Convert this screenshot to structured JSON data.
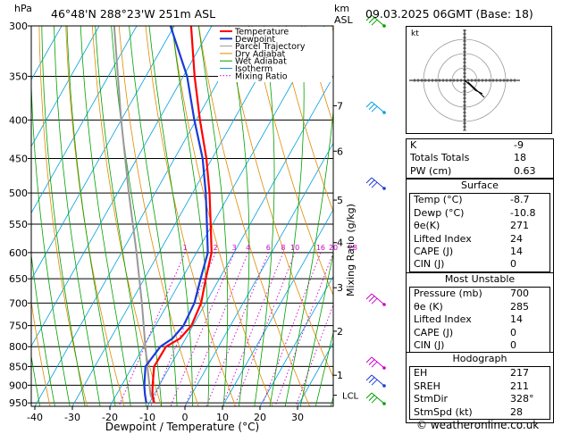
{
  "header": {
    "location": "46°48'N  288°23'W  251m  ASL",
    "datetime": "09.03.2025  06GMT  (Base: 18)",
    "hpa_label": "hPa",
    "km_label": "km",
    "asl_label": "ASL"
  },
  "chart_data": {
    "type": "skew-t",
    "xlabel": "Dewpoint / Temperature (°C)",
    "ylabel_right": "Mixing Ratio (g/kg)",
    "x_ticks": [
      -40,
      -30,
      -20,
      -10,
      0,
      10,
      20,
      30
    ],
    "pressure_levels": [
      300,
      350,
      400,
      450,
      500,
      550,
      600,
      650,
      700,
      750,
      800,
      850,
      900,
      950
    ],
    "km_ticks": [
      {
        "label": "1",
        "p": 873
      },
      {
        "label": "2",
        "p": 763
      },
      {
        "label": "3",
        "p": 668
      },
      {
        "label": "4",
        "p": 582
      },
      {
        "label": "5",
        "p": 511
      },
      {
        "label": "6",
        "p": 440
      },
      {
        "label": "7",
        "p": 383
      },
      {
        "label": "LCL",
        "p": 928
      }
    ],
    "mixing_ratio_labels": [
      "1",
      "2",
      "3",
      "4",
      "6",
      "8",
      "10",
      "16",
      "20",
      "28"
    ],
    "legend": [
      "Temperature",
      "Dewpoint",
      "Parcel Trajectory",
      "Dry Adiabat",
      "Wet Adiabat",
      "Isotherm",
      "Mixing Ratio"
    ],
    "colors": {
      "temperature": "#ff0000",
      "dewpoint": "#1a3bd9",
      "parcel": "#999999",
      "dry_adiabat": "#e08a00",
      "wet_adiabat": "#00a000",
      "isotherm": "#00a0e0",
      "mixing_ratio": "#cc00cc"
    },
    "temperature": [
      {
        "p": 950,
        "t": -8.7
      },
      {
        "p": 925,
        "t": -10.5
      },
      {
        "p": 900,
        "t": -11.8
      },
      {
        "p": 850,
        "t": -14.2
      },
      {
        "p": 800,
        "t": -14.0
      },
      {
        "p": 780,
        "t": -11.5
      },
      {
        "p": 750,
        "t": -10.4
      },
      {
        "p": 700,
        "t": -11.2
      },
      {
        "p": 650,
        "t": -13.6
      },
      {
        "p": 600,
        "t": -16.0
      },
      {
        "p": 550,
        "t": -20.5
      },
      {
        "p": 500,
        "t": -25.5
      },
      {
        "p": 450,
        "t": -31.5
      },
      {
        "p": 400,
        "t": -39.0
      },
      {
        "p": 350,
        "t": -47.0
      },
      {
        "p": 300,
        "t": -55.5
      }
    ],
    "dewpoint": [
      {
        "p": 950,
        "t": -10.8
      },
      {
        "p": 925,
        "t": -12.5
      },
      {
        "p": 900,
        "t": -14.0
      },
      {
        "p": 850,
        "t": -16.5
      },
      {
        "p": 800,
        "t": -15.5
      },
      {
        "p": 780,
        "t": -13.5
      },
      {
        "p": 750,
        "t": -12.5
      },
      {
        "p": 700,
        "t": -13.0
      },
      {
        "p": 650,
        "t": -15.0
      },
      {
        "p": 600,
        "t": -17.0
      },
      {
        "p": 550,
        "t": -21.5
      },
      {
        "p": 500,
        "t": -26.5
      },
      {
        "p": 450,
        "t": -32.5
      },
      {
        "p": 400,
        "t": -40.5
      },
      {
        "p": 350,
        "t": -49.0
      },
      {
        "p": 300,
        "t": -61.0
      }
    ],
    "parcel": [
      {
        "p": 950,
        "t": -8.7
      },
      {
        "p": 928,
        "t": -10.8
      },
      {
        "p": 850,
        "t": -16.0
      },
      {
        "p": 800,
        "t": -19.5
      },
      {
        "p": 700,
        "t": -27.0
      },
      {
        "p": 600,
        "t": -36.0
      },
      {
        "p": 500,
        "t": -47.0
      },
      {
        "p": 400,
        "t": -60.0
      },
      {
        "p": 300,
        "t": -76.0
      }
    ]
  },
  "indices": {
    "rows": [
      {
        "label": "K",
        "value": "-9"
      },
      {
        "label": "Totals Totals",
        "value": "18"
      },
      {
        "label": "PW (cm)",
        "value": "0.63"
      }
    ]
  },
  "surface": {
    "title": "Surface",
    "rows": [
      {
        "label": "Temp (°C)",
        "value": "-8.7"
      },
      {
        "label": "Dewp (°C)",
        "value": "-10.8"
      },
      {
        "label": "θe(K)",
        "value": "271"
      },
      {
        "label": "Lifted Index",
        "value": "24"
      },
      {
        "label": "CAPE (J)",
        "value": "14"
      },
      {
        "label": "CIN (J)",
        "value": "0"
      }
    ]
  },
  "most_unstable": {
    "title": "Most Unstable",
    "rows": [
      {
        "label": "Pressure (mb)",
        "value": "700"
      },
      {
        "label": "θe (K)",
        "value": "285"
      },
      {
        "label": "Lifted Index",
        "value": "14"
      },
      {
        "label": "CAPE (J)",
        "value": "0"
      },
      {
        "label": "CIN (J)",
        "value": "0"
      }
    ]
  },
  "hodograph": {
    "title": "Hodograph",
    "kt_label": "kt",
    "rows": [
      {
        "label": "EH",
        "value": "217"
      },
      {
        "label": "SREH",
        "value": "211"
      },
      {
        "label": "StmDir",
        "value": "328°"
      },
      {
        "label": "StmSpd (kt)",
        "value": "28"
      }
    ]
  },
  "footer": "© weatheronline.co.uk"
}
